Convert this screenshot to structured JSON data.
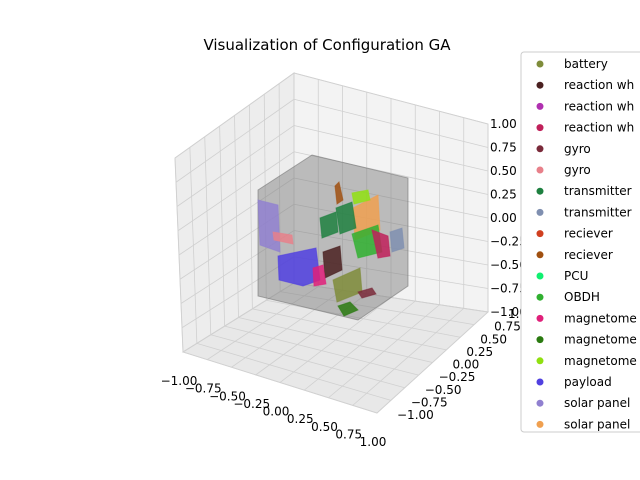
{
  "chart_data": {
    "type": "scatter3d",
    "title": "Visualization of Configuration GA",
    "axes": {
      "x": {
        "ticks": [
          "−1.00",
          "−0.75",
          "−0.50",
          "−0.25",
          "0.00",
          "0.25",
          "0.50",
          "0.75",
          "1.00"
        ],
        "range": [
          -1,
          1
        ]
      },
      "y": {
        "ticks": [
          "−1.00",
          "−0.75",
          "−0.50",
          "−0.25",
          "0.00",
          "0.25",
          "0.50",
          "0.75",
          "1.00"
        ],
        "range": [
          -1,
          1
        ]
      },
      "z": {
        "ticks": [
          "−1.00",
          "−0.75",
          "−0.50",
          "−0.25",
          "0.00",
          "0.25",
          "0.50",
          "0.75",
          "1.00"
        ],
        "range": [
          -1,
          1
        ]
      }
    },
    "grid": true,
    "legend_position": "right",
    "legend": [
      {
        "label": "battery",
        "color": "#7f8c3a"
      },
      {
        "label": "reaction wh",
        "color": "#4a2020"
      },
      {
        "label": "reaction wh",
        "color": "#b030b0"
      },
      {
        "label": "reaction wh",
        "color": "#c0205a"
      },
      {
        "label": "gyro",
        "color": "#7a2a3a"
      },
      {
        "label": "gyro",
        "color": "#e8808a"
      },
      {
        "label": "transmitter",
        "color": "#1e8040"
      },
      {
        "label": "transmitter",
        "color": "#7f8fb0"
      },
      {
        "label": "reciever",
        "color": "#d04020"
      },
      {
        "label": "reciever",
        "color": "#a05010"
      },
      {
        "label": "PCU",
        "color": "#10f070"
      },
      {
        "label": "OBDH",
        "color": "#30b030"
      },
      {
        "label": "magnetome",
        "color": "#e0207a"
      },
      {
        "label": "magnetome",
        "color": "#2a7a10"
      },
      {
        "label": "magnetome",
        "color": "#90e010"
      },
      {
        "label": "payload",
        "color": "#5040e0"
      },
      {
        "label": "solar panel",
        "color": "#9080d0"
      },
      {
        "label": "solar panel",
        "color": "#f0a050"
      }
    ]
  }
}
